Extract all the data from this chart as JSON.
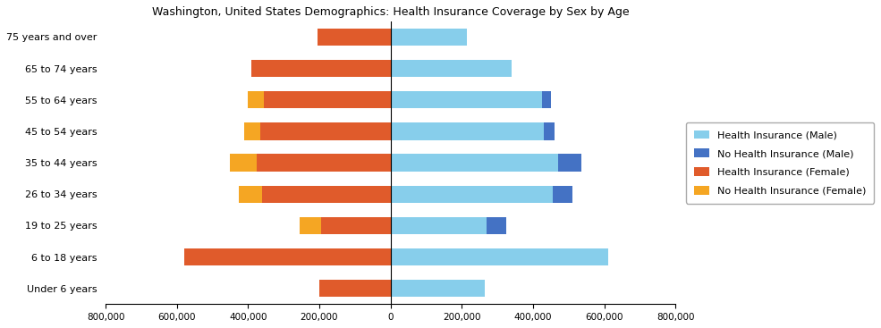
{
  "title": "Washington, United States Demographics: Health Insurance Coverage by Sex by Age",
  "age_groups": [
    "Under 6 years",
    "6 to 18 years",
    "19 to 25 years",
    "26 to 34 years",
    "35 to 44 years",
    "45 to 54 years",
    "55 to 64 years",
    "65 to 74 years",
    "75 years and over"
  ],
  "health_ins_male": [
    265000,
    610000,
    270000,
    455000,
    470000,
    430000,
    425000,
    340000,
    215000
  ],
  "no_health_ins_male": [
    0,
    0,
    55000,
    55000,
    65000,
    30000,
    25000,
    0,
    0
  ],
  "health_ins_female": [
    200000,
    580000,
    195000,
    360000,
    375000,
    365000,
    355000,
    390000,
    205000
  ],
  "no_health_ins_female": [
    0,
    0,
    60000,
    65000,
    75000,
    45000,
    45000,
    0,
    0
  ],
  "color_health_ins_male": "#87CEEB",
  "color_no_health_ins_male": "#4472C4",
  "color_health_ins_female": "#E05B2B",
  "color_no_health_ins_female": "#F5A623",
  "xlim": 800000,
  "legend_labels": [
    "Health Insurance (Male)",
    "No Health Insurance (Male)",
    "Health Insurance (Female)",
    "No Health Insurance (Female)"
  ],
  "background_color": "#ffffff",
  "bar_height": 0.55,
  "title_fontsize": 9,
  "tick_fontsize": 7.5,
  "ytick_fontsize": 8,
  "legend_fontsize": 8
}
